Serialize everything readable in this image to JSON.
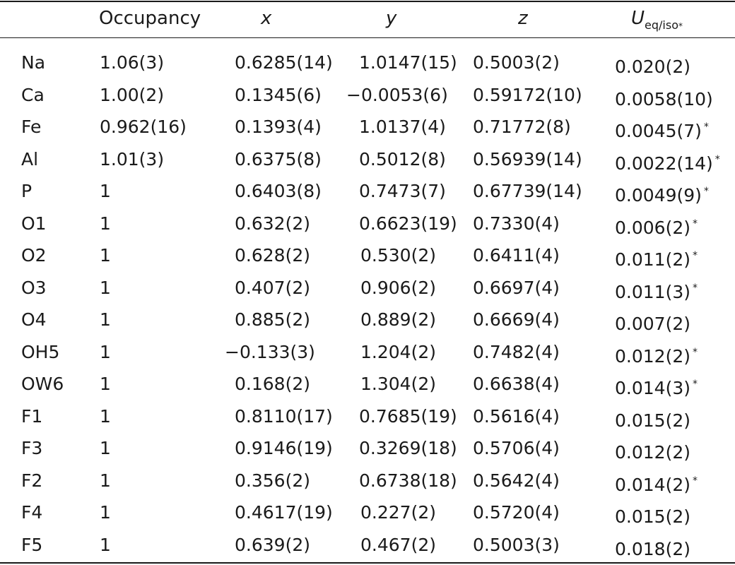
{
  "header": {
    "occupancy": "Occupancy",
    "x": "x",
    "y": "y",
    "z": "z",
    "u_main": "U",
    "u_sub": "eq/iso",
    "u_star": "*"
  },
  "rows": [
    {
      "atom": "Na",
      "occ": "1.06(3)",
      "x": "0.6285(14)",
      "y": "1.0147(15)",
      "z": "0.5003(2)",
      "u": "0.020(2)",
      "star": ""
    },
    {
      "atom": "Ca",
      "occ": "1.00(2)",
      "x": "0.1345(6)",
      "y": "−0.0053(6)",
      "z": "0.59172(10)",
      "u": "0.0058(10)",
      "star": ""
    },
    {
      "atom": "Fe",
      "occ": "0.962(16)",
      "x": "0.1393(4)",
      "y": "1.0137(4)",
      "z": "0.71772(8)",
      "u": "0.0045(7)",
      "star": "*"
    },
    {
      "atom": "Al",
      "occ": "1.01(3)",
      "x": "0.6375(8)",
      "y": "0.5012(8)",
      "z": "0.56939(14)",
      "u": "0.0022(14)",
      "star": "*"
    },
    {
      "atom": "P",
      "occ": "1",
      "x": "0.6403(8)",
      "y": "0.7473(7)",
      "z": "0.67739(14)",
      "u": "0.0049(9)",
      "star": "*"
    },
    {
      "atom": "O1",
      "occ": "1",
      "x": "0.632(2)",
      "y": "0.6623(19)",
      "z": "0.7330(4)",
      "u": "0.006(2)",
      "star": "*"
    },
    {
      "atom": "O2",
      "occ": "1",
      "x": "0.628(2)",
      "y": "0.530(2)",
      "z": "0.6411(4)",
      "u": "0.011(2)",
      "star": "*"
    },
    {
      "atom": "O3",
      "occ": "1",
      "x": "0.407(2)",
      "y": "0.906(2)",
      "z": "0.6697(4)",
      "u": "0.011(3)",
      "star": "*"
    },
    {
      "atom": "O4",
      "occ": "1",
      "x": "0.885(2)",
      "y": "0.889(2)",
      "z": "0.6669(4)",
      "u": "0.007(2)",
      "star": ""
    },
    {
      "atom": "OH5",
      "occ": "1",
      "x": "−0.133(3)",
      "y": "1.204(2)",
      "z": "0.7482(4)",
      "u": "0.012(2)",
      "star": "*"
    },
    {
      "atom": "OW6",
      "occ": "1",
      "x": "0.168(2)",
      "y": "1.304(2)",
      "z": "0.6638(4)",
      "u": "0.014(3)",
      "star": "*"
    },
    {
      "atom": "F1",
      "occ": "1",
      "x": "0.8110(17)",
      "y": "0.7685(19)",
      "z": "0.5616(4)",
      "u": "0.015(2)",
      "star": ""
    },
    {
      "atom": "F3",
      "occ": "1",
      "x": "0.9146(19)",
      "y": "0.3269(18)",
      "z": "0.5706(4)",
      "u": "0.012(2)",
      "star": ""
    },
    {
      "atom": "F2",
      "occ": "1",
      "x": "0.356(2)",
      "y": "0.6738(18)",
      "z": "0.5642(4)",
      "u": "0.014(2)",
      "star": "*"
    },
    {
      "atom": "F4",
      "occ": "1",
      "x": "0.4617(19)",
      "y": "0.227(2)",
      "z": "0.5720(4)",
      "u": "0.015(2)",
      "star": ""
    },
    {
      "atom": "F5",
      "occ": "1",
      "x": "0.639(2)",
      "y": "0.467(2)",
      "z": "0.5003(3)",
      "u": "0.018(2)",
      "star": ""
    }
  ]
}
